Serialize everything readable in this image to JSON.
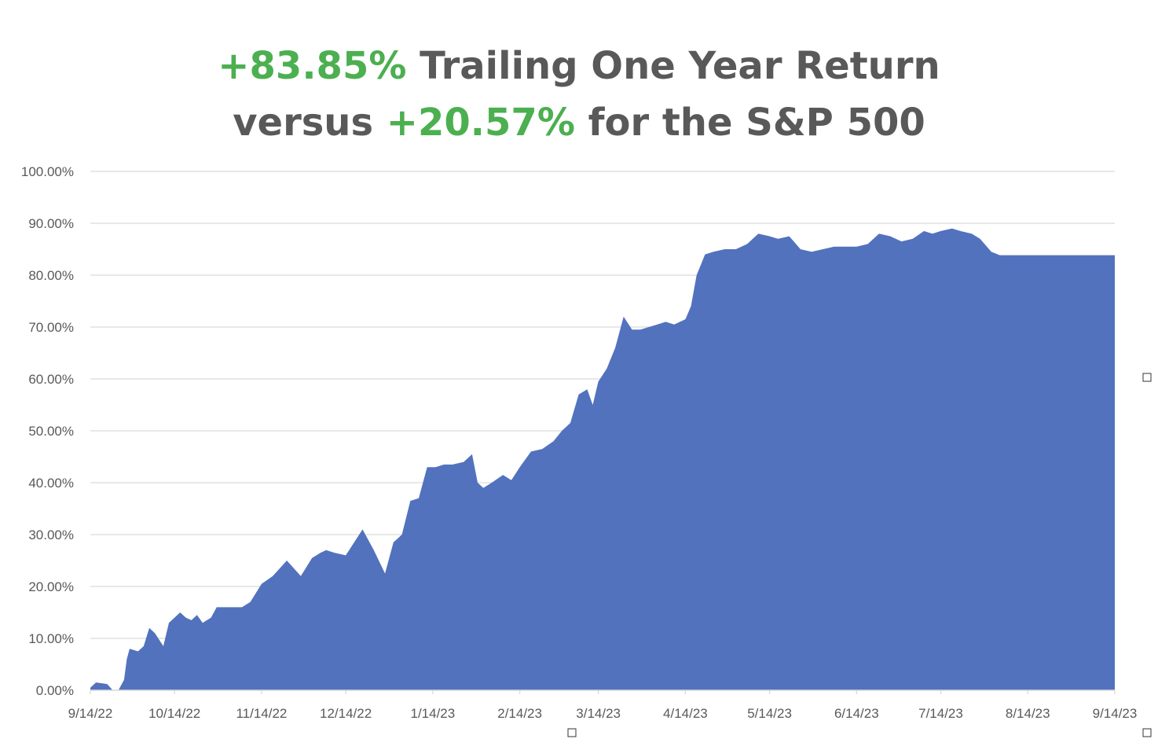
{
  "title": {
    "line1": {
      "highlight": "+83.85%",
      "text": " Trailing One Year Return"
    },
    "line2": {
      "prefix": "versus ",
      "highlight": "+20.57%",
      "suffix": " for the S&P 500"
    }
  },
  "colors": {
    "area": "#5272be",
    "highlight": "#4caf50",
    "text": "#595959",
    "grid": "#d9d9d9"
  },
  "chart_data": {
    "type": "area",
    "ylim": [
      0,
      100
    ],
    "y_ticks": [
      "0.00%",
      "10.00%",
      "20.00%",
      "30.00%",
      "40.00%",
      "50.00%",
      "60.00%",
      "70.00%",
      "80.00%",
      "90.00%",
      "100.00%"
    ],
    "x_ticks": [
      "9/14/22",
      "10/14/22",
      "11/14/22",
      "12/14/22",
      "1/14/23",
      "2/14/23",
      "3/14/23",
      "4/14/23",
      "5/14/23",
      "6/14/23",
      "7/14/23",
      "8/14/23",
      "9/14/23"
    ],
    "grid": true,
    "legend": "none",
    "series": [
      {
        "x": [
          "9/14/22",
          "9/16/22",
          "9/20/22",
          "9/22/22",
          "9/24/22",
          "9/26/22",
          "9/27/22",
          "9/28/22",
          "10/1/22",
          "10/3/22",
          "10/5/22",
          "10/7/22",
          "10/10/22",
          "10/12/22",
          "10/14/22",
          "10/16/22",
          "10/18/22",
          "10/20/22",
          "10/22/22",
          "10/24/22",
          "10/27/22",
          "10/29/22",
          "11/1/22",
          "11/3/22",
          "11/5/22",
          "11/7/22",
          "11/10/22",
          "11/14/22",
          "11/18/22",
          "11/23/22",
          "11/28/22",
          "12/2/22",
          "12/5/22",
          "12/7/22",
          "12/10/22",
          "12/14/22",
          "12/17/22",
          "12/20/22",
          "12/24/22",
          "12/28/22",
          "12/31/22",
          "1/3/23",
          "1/6/23",
          "1/9/23",
          "1/12/23",
          "1/15/23",
          "1/18/23",
          "1/21/23",
          "1/25/23",
          "1/28/23",
          "1/30/23",
          "2/1/23",
          "2/4/23",
          "2/8/23",
          "2/11/23",
          "2/14/23",
          "2/18/23",
          "2/22/23",
          "2/26/23",
          "3/1/23",
          "3/4/23",
          "3/7/23",
          "3/10/23",
          "3/12/23",
          "3/14/23",
          "3/17/23",
          "3/20/23",
          "3/23/23",
          "3/26/23",
          "3/29/23",
          "4/1/23",
          "4/4/23",
          "4/7/23",
          "4/10/23",
          "4/14/23",
          "4/16/23",
          "4/18/23",
          "4/21/23",
          "4/24/23",
          "4/28/23",
          "5/2/23",
          "5/6/23",
          "5/10/23",
          "5/14/23",
          "5/17/23",
          "5/21/23",
          "5/25/23",
          "5/29/23",
          "6/2/23",
          "6/6/23",
          "6/10/23",
          "6/14/23",
          "6/18/23",
          "6/22/23",
          "6/26/23",
          "6/30/23",
          "7/4/23",
          "7/8/23",
          "7/11/23",
          "7/14/23",
          "7/18/23",
          "7/21/23",
          "7/25/23",
          "7/28/23",
          "8/1/23",
          "8/4/23",
          "8/8/23",
          "8/14/23",
          "8/20/23",
          "8/28/23",
          "9/5/23",
          "9/14/23"
        ],
        "values": [
          0.5,
          1.5,
          1.2,
          0.0,
          0.0,
          2.0,
          6.0,
          8.0,
          7.5,
          8.5,
          12.0,
          11.0,
          8.5,
          13.0,
          14.0,
          15.0,
          14.0,
          13.5,
          14.5,
          13.0,
          14.0,
          16.0,
          16.0,
          16.0,
          16.0,
          16.0,
          17.0,
          20.5,
          22.0,
          25.0,
          22.0,
          25.5,
          26.5,
          27.0,
          26.5,
          26.0,
          28.5,
          31.0,
          27.0,
          22.5,
          28.5,
          30.0,
          36.5,
          37.0,
          43.0,
          43.0,
          43.5,
          43.5,
          44.0,
          45.5,
          40.0,
          39.0,
          40.0,
          41.5,
          40.5,
          43.0,
          46.0,
          46.5,
          48.0,
          50.0,
          51.5,
          57.0,
          58.0,
          55.0,
          59.5,
          62.0,
          66.0,
          72.0,
          69.5,
          69.5,
          70.0,
          70.5,
          71.0,
          70.5,
          71.5,
          74.0,
          80.0,
          84.0,
          84.5,
          85.0,
          85.0,
          86.0,
          88.0,
          87.5,
          87.0,
          87.5,
          85.0,
          84.5,
          85.0,
          85.5,
          85.5,
          85.5,
          86.0,
          88.0,
          87.5,
          86.5,
          87.0,
          88.5,
          88.0,
          88.5,
          89.0,
          88.5,
          88.0,
          87.0,
          84.5,
          83.85,
          83.85,
          83.85,
          83.85,
          83.85,
          83.85,
          83.85
        ]
      }
    ]
  }
}
